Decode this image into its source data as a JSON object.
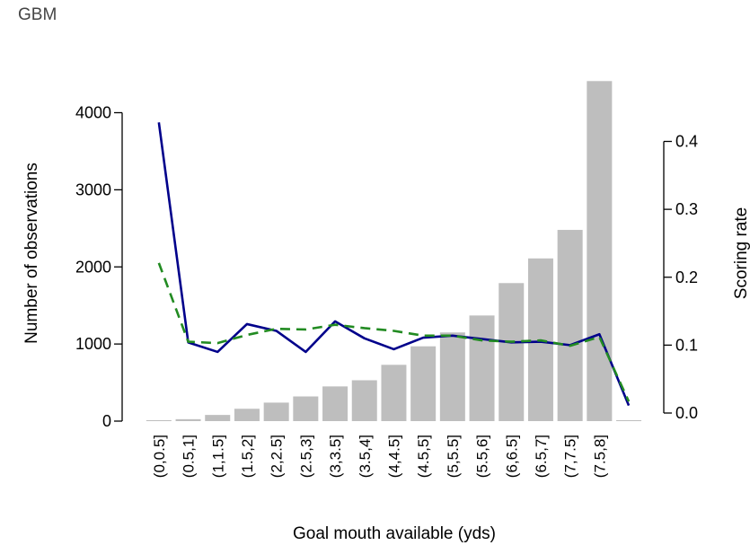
{
  "chart_data": {
    "type": "bar",
    "title": "GBM",
    "xlabel": "Goal mouth available (yds)",
    "ylabel": "Number of observations",
    "y2label": "Scoring rate",
    "categories": [
      "(0,0.5]",
      "(0.5,1]",
      "(1,1.5]",
      "(1.5,2]",
      "(2,2.5]",
      "(2.5,3]",
      "(3,3.5]",
      "(3.5,4]",
      "(4,4.5]",
      "(4.5,5]",
      "(5,5.5]",
      "(5.5,6]",
      "(6,6.5]",
      "(6.5,7]",
      "(7,7.5]",
      "(7.5,8]",
      ""
    ],
    "ylim": [
      0,
      4000
    ],
    "yticks": [
      0,
      1000,
      2000,
      3000,
      4000
    ],
    "y2lim": [
      0,
      0.4
    ],
    "y2ticks": [
      "0.0",
      "0.1",
      "0.2",
      "0.3",
      "0.4"
    ],
    "colors": {
      "bars": "#bebebe",
      "solid": "#00008b",
      "dashed": "#228b22"
    },
    "series": [
      {
        "type": "bar",
        "axis": "left",
        "values": [
          5,
          25,
          80,
          160,
          240,
          320,
          450,
          530,
          730,
          970,
          1150,
          1370,
          1790,
          2110,
          2480,
          4410,
          8
        ]
      },
      {
        "type": "line",
        "axis": "right",
        "style": "solid",
        "values": [
          0.428,
          0.104,
          0.09,
          0.131,
          0.121,
          0.09,
          0.135,
          0.11,
          0.094,
          0.111,
          0.114,
          0.109,
          0.104,
          0.105,
          0.1,
          0.116,
          0.011
        ]
      },
      {
        "type": "line",
        "axis": "right",
        "style": "dashed",
        "values": [
          0.221,
          0.105,
          0.103,
          0.115,
          0.124,
          0.123,
          0.13,
          0.125,
          0.121,
          0.114,
          0.114,
          0.107,
          0.105,
          0.107,
          0.099,
          0.112,
          0.017
        ]
      }
    ]
  }
}
